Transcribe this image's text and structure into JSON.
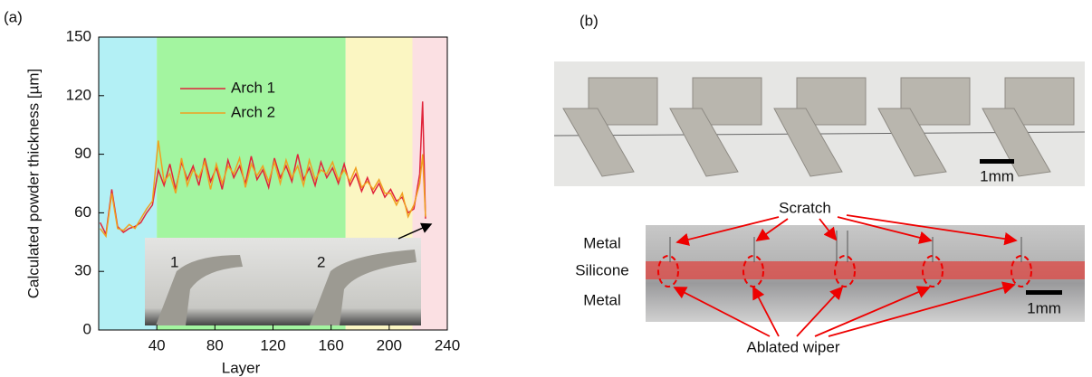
{
  "panel_labels": [
    "(a)",
    "(b)"
  ],
  "chart_data": {
    "type": "line",
    "x_label": "Layer",
    "y_label": "Calculated powder thickness [µm]",
    "xlim": [
      0,
      240
    ],
    "ylim": [
      0,
      150
    ],
    "xticks": [
      40,
      80,
      120,
      160,
      200,
      240
    ],
    "yticks": [
      0,
      30,
      60,
      90,
      120,
      150
    ],
    "legend": "upper left",
    "regions": [
      {
        "start": 0,
        "end": 40,
        "color": "#b3f0f5"
      },
      {
        "start": 40,
        "end": 170,
        "color": "#a3f5a0"
      },
      {
        "start": 170,
        "end": 216,
        "color": "#fbf6c2"
      },
      {
        "start": 216,
        "end": 240,
        "color": "#fbe0e3"
      }
    ],
    "x": [
      1,
      5,
      9,
      13,
      17,
      21,
      25,
      29,
      33,
      37,
      41,
      45,
      49,
      53,
      57,
      61,
      65,
      69,
      73,
      77,
      81,
      85,
      89,
      93,
      97,
      101,
      105,
      109,
      113,
      117,
      121,
      125,
      129,
      133,
      137,
      141,
      145,
      149,
      153,
      157,
      161,
      165,
      169,
      173,
      177,
      181,
      185,
      189,
      193,
      197,
      201,
      205,
      209,
      213,
      217,
      221,
      223,
      225
    ],
    "series": [
      {
        "name": "Arch 1",
        "color": "#e0243a",
        "values": [
          55,
          49,
          72,
          53,
          50,
          52,
          53,
          55,
          60,
          64,
          82,
          74,
          85,
          72,
          86,
          77,
          84,
          74,
          88,
          76,
          83,
          72,
          87,
          78,
          84,
          75,
          89,
          77,
          82,
          73,
          88,
          78,
          84,
          76,
          90,
          77,
          83,
          74,
          86,
          78,
          83,
          75,
          85,
          74,
          80,
          71,
          78,
          70,
          75,
          68,
          72,
          66,
          68,
          60,
          62,
          80,
          117,
          57
        ]
      },
      {
        "name": "Arch 2",
        "color": "#f0a020",
        "values": [
          52,
          48,
          70,
          52,
          51,
          54,
          52,
          57,
          62,
          66,
          97,
          76,
          80,
          70,
          88,
          74,
          82,
          78,
          86,
          72,
          85,
          75,
          84,
          80,
          88,
          73,
          85,
          79,
          84,
          76,
          86,
          75,
          87,
          78,
          84,
          74,
          87,
          77,
          82,
          80,
          86,
          77,
          82,
          76,
          83,
          73,
          76,
          72,
          77,
          70,
          70,
          64,
          70,
          58,
          64,
          75,
          90,
          58
        ]
      }
    ],
    "inset_labels": [
      "1",
      "2"
    ]
  },
  "panel_b": {
    "scale_bars": [
      "1mm",
      "1mm"
    ],
    "layers": [
      "Metal",
      "Silicone",
      "Metal"
    ],
    "callouts": [
      "Scratch",
      "Ablated wiper"
    ]
  }
}
